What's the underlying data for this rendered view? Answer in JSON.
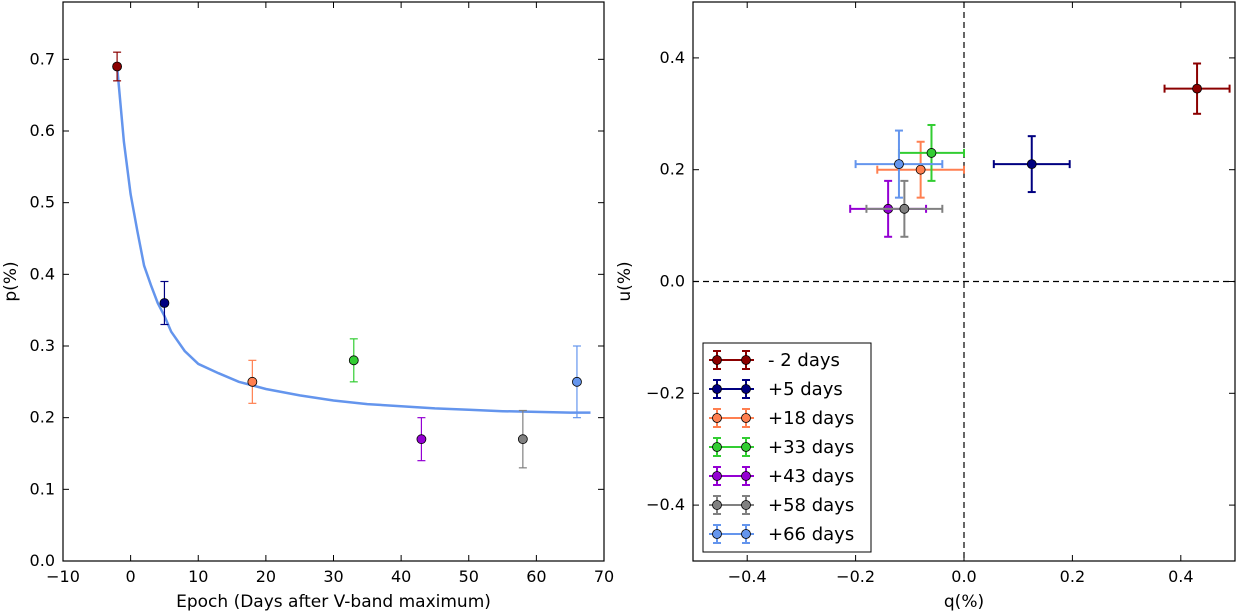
{
  "chart_data": [
    {
      "type": "scatter",
      "xlabel": "Epoch (Days after V-band maximum)",
      "ylabel": "p(%)",
      "xlim": [
        -10,
        70
      ],
      "ylim": [
        0.0,
        0.78
      ],
      "xticks": [
        -10,
        0,
        10,
        20,
        30,
        40,
        50,
        60,
        70
      ],
      "yticks": [
        0.0,
        0.1,
        0.2,
        0.3,
        0.4,
        0.5,
        0.6,
        0.7
      ],
      "xtick_labels": [
        "−10",
        "0",
        "10",
        "20",
        "30",
        "40",
        "50",
        "60",
        "70"
      ],
      "ytick_labels": [
        "0.0",
        "0.1",
        "0.2",
        "0.3",
        "0.4",
        "0.5",
        "0.6",
        "0.7"
      ],
      "grid": false,
      "points": [
        {
          "x": -2,
          "y": 0.69,
          "yerr": 0.02,
          "color": "#8b0000"
        },
        {
          "x": 5,
          "y": 0.36,
          "yerr": 0.03,
          "color": "#000080"
        },
        {
          "x": 18,
          "y": 0.25,
          "yerr": 0.03,
          "color": "#ff7f50"
        },
        {
          "x": 33,
          "y": 0.28,
          "yerr": 0.03,
          "color": "#32cd32"
        },
        {
          "x": 43,
          "y": 0.17,
          "yerr": 0.03,
          "color": "#9400d3"
        },
        {
          "x": 58,
          "y": 0.17,
          "yerr": 0.04,
          "color": "#808080"
        },
        {
          "x": 66,
          "y": 0.25,
          "yerr": 0.05,
          "color": "#6495ed"
        }
      ],
      "fit_curve": {
        "color": "#6495ed",
        "x": [
          -2,
          -1,
          0,
          1,
          2,
          3,
          4,
          5,
          6,
          8,
          10,
          13,
          16,
          20,
          25,
          30,
          35,
          40,
          45,
          50,
          55,
          60,
          65,
          68
        ],
        "y": [
          0.69,
          0.585,
          0.512,
          0.46,
          0.412,
          0.385,
          0.36,
          0.342,
          0.32,
          0.293,
          0.275,
          0.262,
          0.25,
          0.24,
          0.231,
          0.224,
          0.219,
          0.216,
          0.213,
          0.211,
          0.209,
          0.208,
          0.207,
          0.207
        ]
      }
    },
    {
      "type": "scatter",
      "xlabel": "q(%)",
      "ylabel": "u(%)",
      "xlim": [
        -0.5,
        0.5
      ],
      "ylim": [
        -0.5,
        0.5
      ],
      "xticks": [
        -0.4,
        -0.2,
        0.0,
        0.2,
        0.4
      ],
      "yticks": [
        -0.4,
        -0.2,
        0.0,
        0.2,
        0.4
      ],
      "xtick_labels": [
        "−0.4",
        "−0.2",
        "0.0",
        "0.2",
        "0.4"
      ],
      "ytick_labels": [
        "−0.4",
        "−0.2",
        "0.0",
        "0.2",
        "0.4"
      ],
      "grid": false,
      "reference_lines": {
        "x": 0.0,
        "y": 0.0,
        "style": "dashed"
      },
      "legend_position": "lower-left",
      "series": [
        {
          "name": "- 2 days",
          "color": "#8b0000",
          "x": 0.43,
          "y": 0.345,
          "xerr": 0.06,
          "yerr": 0.045
        },
        {
          "name": "+5 days",
          "color": "#000080",
          "x": 0.125,
          "y": 0.21,
          "xerr": 0.07,
          "yerr": 0.05
        },
        {
          "name": "+18 days",
          "color": "#ff7f50",
          "x": -0.08,
          "y": 0.2,
          "xerr": 0.08,
          "yerr": 0.05
        },
        {
          "name": "+33 days",
          "color": "#32cd32",
          "x": -0.06,
          "y": 0.23,
          "xerr": 0.06,
          "yerr": 0.05
        },
        {
          "name": "+43 days",
          "color": "#9400d3",
          "x": -0.14,
          "y": 0.13,
          "xerr": 0.07,
          "yerr": 0.05
        },
        {
          "name": "+58 days",
          "color": "#808080",
          "x": -0.11,
          "y": 0.13,
          "xerr": 0.07,
          "yerr": 0.05
        },
        {
          "name": "+66 days",
          "color": "#6495ed",
          "x": -0.12,
          "y": 0.21,
          "xerr": 0.08,
          "yerr": 0.06
        }
      ]
    }
  ]
}
